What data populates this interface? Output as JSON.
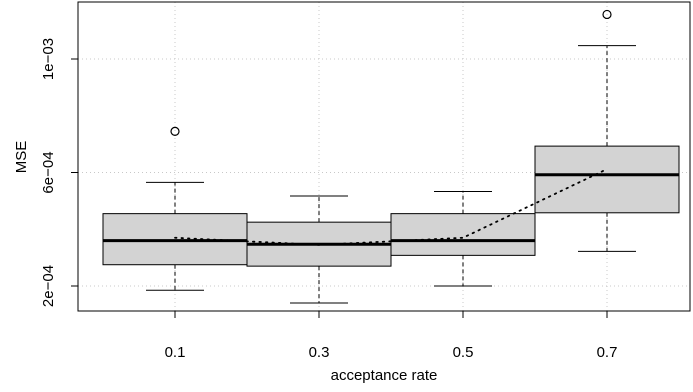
{
  "chart_data": {
    "type": "boxplot",
    "title": "",
    "xlabel": "acceptance rate",
    "ylabel": "MSE",
    "categories": [
      "0.1",
      "0.3",
      "0.5",
      "0.7"
    ],
    "y_tick_values": [
      0.0002,
      0.0006,
      0.001
    ],
    "y_tick_labels": [
      "2e−04",
      "6e−04",
      "1e−03"
    ],
    "ylim": [
      0.0001,
      0.00121
    ],
    "grid": true,
    "boxes": [
      {
        "category": "0.1",
        "whisker_low": 0.000185,
        "q1": 0.000275,
        "median": 0.00036,
        "q3": 0.000455,
        "whisker_high": 0.000565,
        "mean": 0.00037,
        "outliers": [
          0.000745
        ]
      },
      {
        "category": "0.3",
        "whisker_low": 0.00014,
        "q1": 0.00027,
        "median": 0.000347,
        "q3": 0.000425,
        "whisker_high": 0.000517,
        "mean": 0.000345,
        "outliers": []
      },
      {
        "category": "0.5",
        "whisker_low": 0.0002,
        "q1": 0.000308,
        "median": 0.00036,
        "q3": 0.000455,
        "whisker_high": 0.000533,
        "mean": 0.00037,
        "outliers": []
      },
      {
        "category": "0.7",
        "whisker_low": 0.000322,
        "q1": 0.000458,
        "median": 0.000592,
        "q3": 0.000693,
        "whisker_high": 0.001047,
        "mean": 0.000612,
        "outliers": [
          0.001157
        ]
      }
    ],
    "colors": {
      "box_fill": "#d3d3d3",
      "grid": "#c8c8c8",
      "ink": "#000000"
    }
  }
}
